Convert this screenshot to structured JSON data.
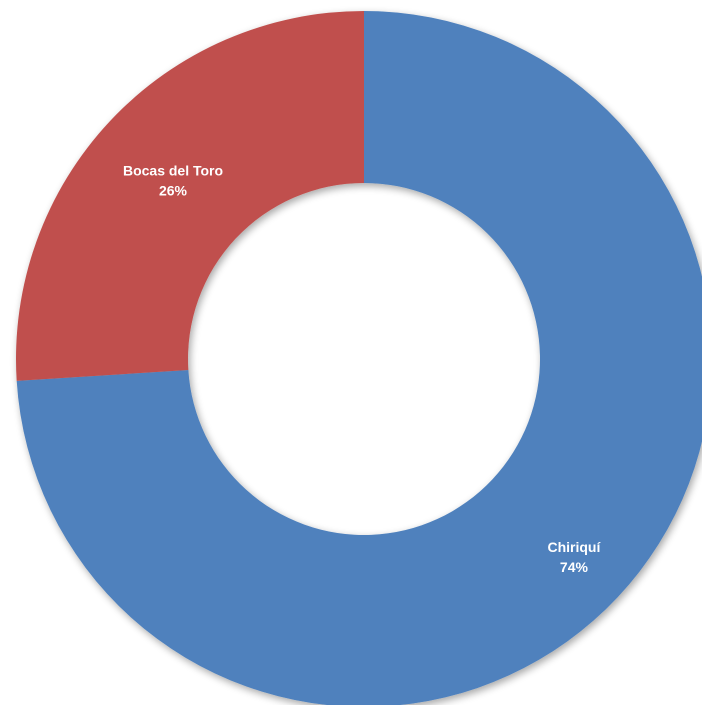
{
  "chart_data": {
    "type": "pie",
    "variant": "donut",
    "title": "",
    "legend": "none",
    "slices": [
      {
        "label": "Chiriquí",
        "value": 74,
        "value_label": "74%",
        "color": "#4F81BD"
      },
      {
        "label": "Bocas del Toro",
        "value": 26,
        "value_label": "26%",
        "color": "#C0504D"
      }
    ]
  }
}
